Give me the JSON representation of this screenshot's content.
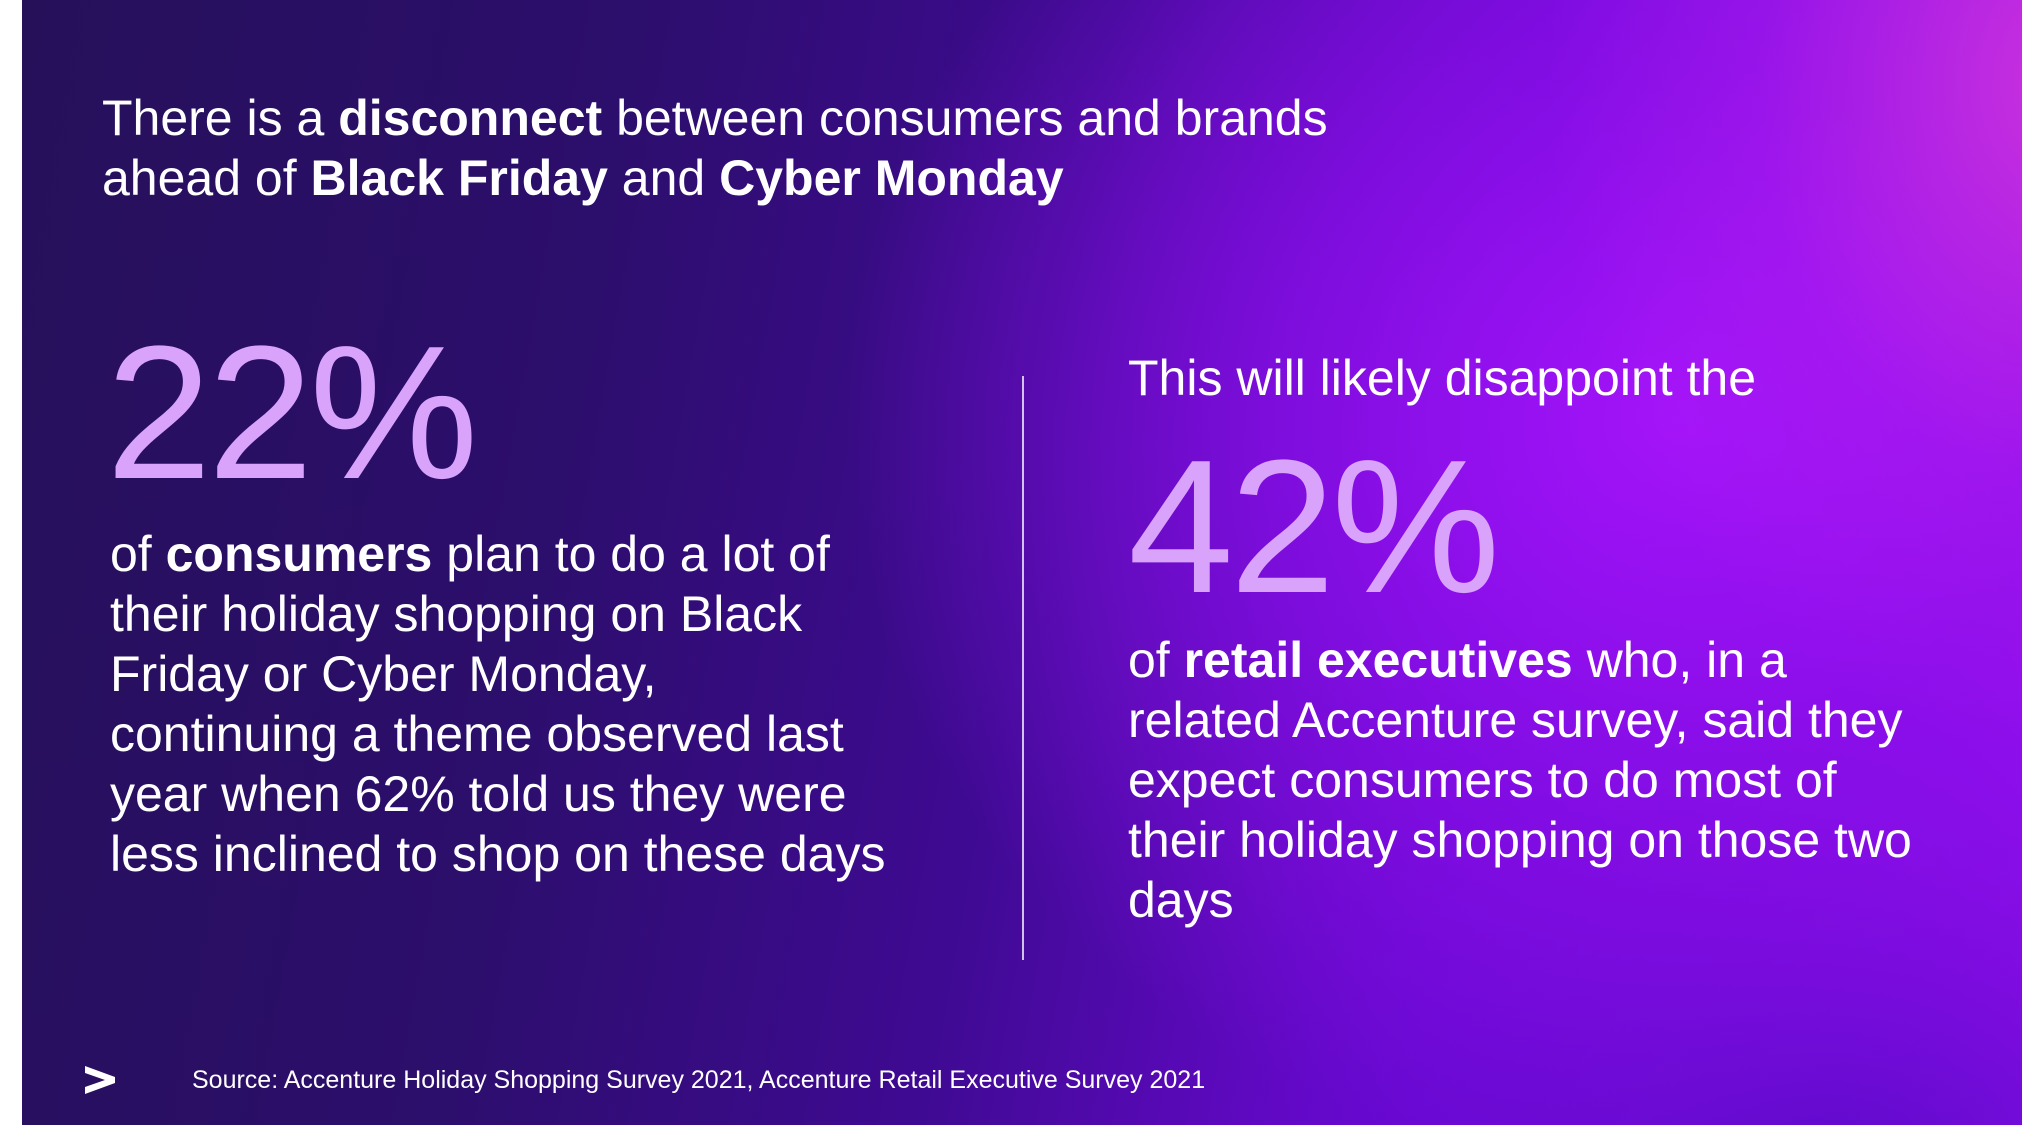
{
  "title": {
    "line1_pre": "There is a ",
    "line1_bold": "disconnect",
    "line1_post": " between consumers and brands",
    "line2_pre": "ahead of ",
    "line2_bold1": "Black Friday",
    "line2_mid": " and ",
    "line2_bold2": "Cyber Monday"
  },
  "left_stat": {
    "percent": "22%",
    "text_pre": "of ",
    "text_bold": "consumers",
    "text_post": " plan to do a lot of their holiday shopping on Black Friday or Cyber Monday, continuing a theme observed last year when 62% told us they were less inclined to shop on these days"
  },
  "right_stat": {
    "lead": "This will likely disappoint the",
    "percent": "42%",
    "text_pre": "of ",
    "text_bold": "retail executives",
    "text_post": " who, in a related Accenture survey, said they expect consumers to do most of their holiday shopping on those two days"
  },
  "footer": {
    "source": "Source: Accenture Holiday Shopping Survey 2021, Accenture Retail Executive Survey 2021",
    "logo_icon": "accenture-chevron-icon"
  },
  "colors": {
    "accent_percent": "#d9a2fb",
    "text": "#ffffff",
    "background_dark": "#26105a",
    "background_purple": "#a014f5"
  }
}
